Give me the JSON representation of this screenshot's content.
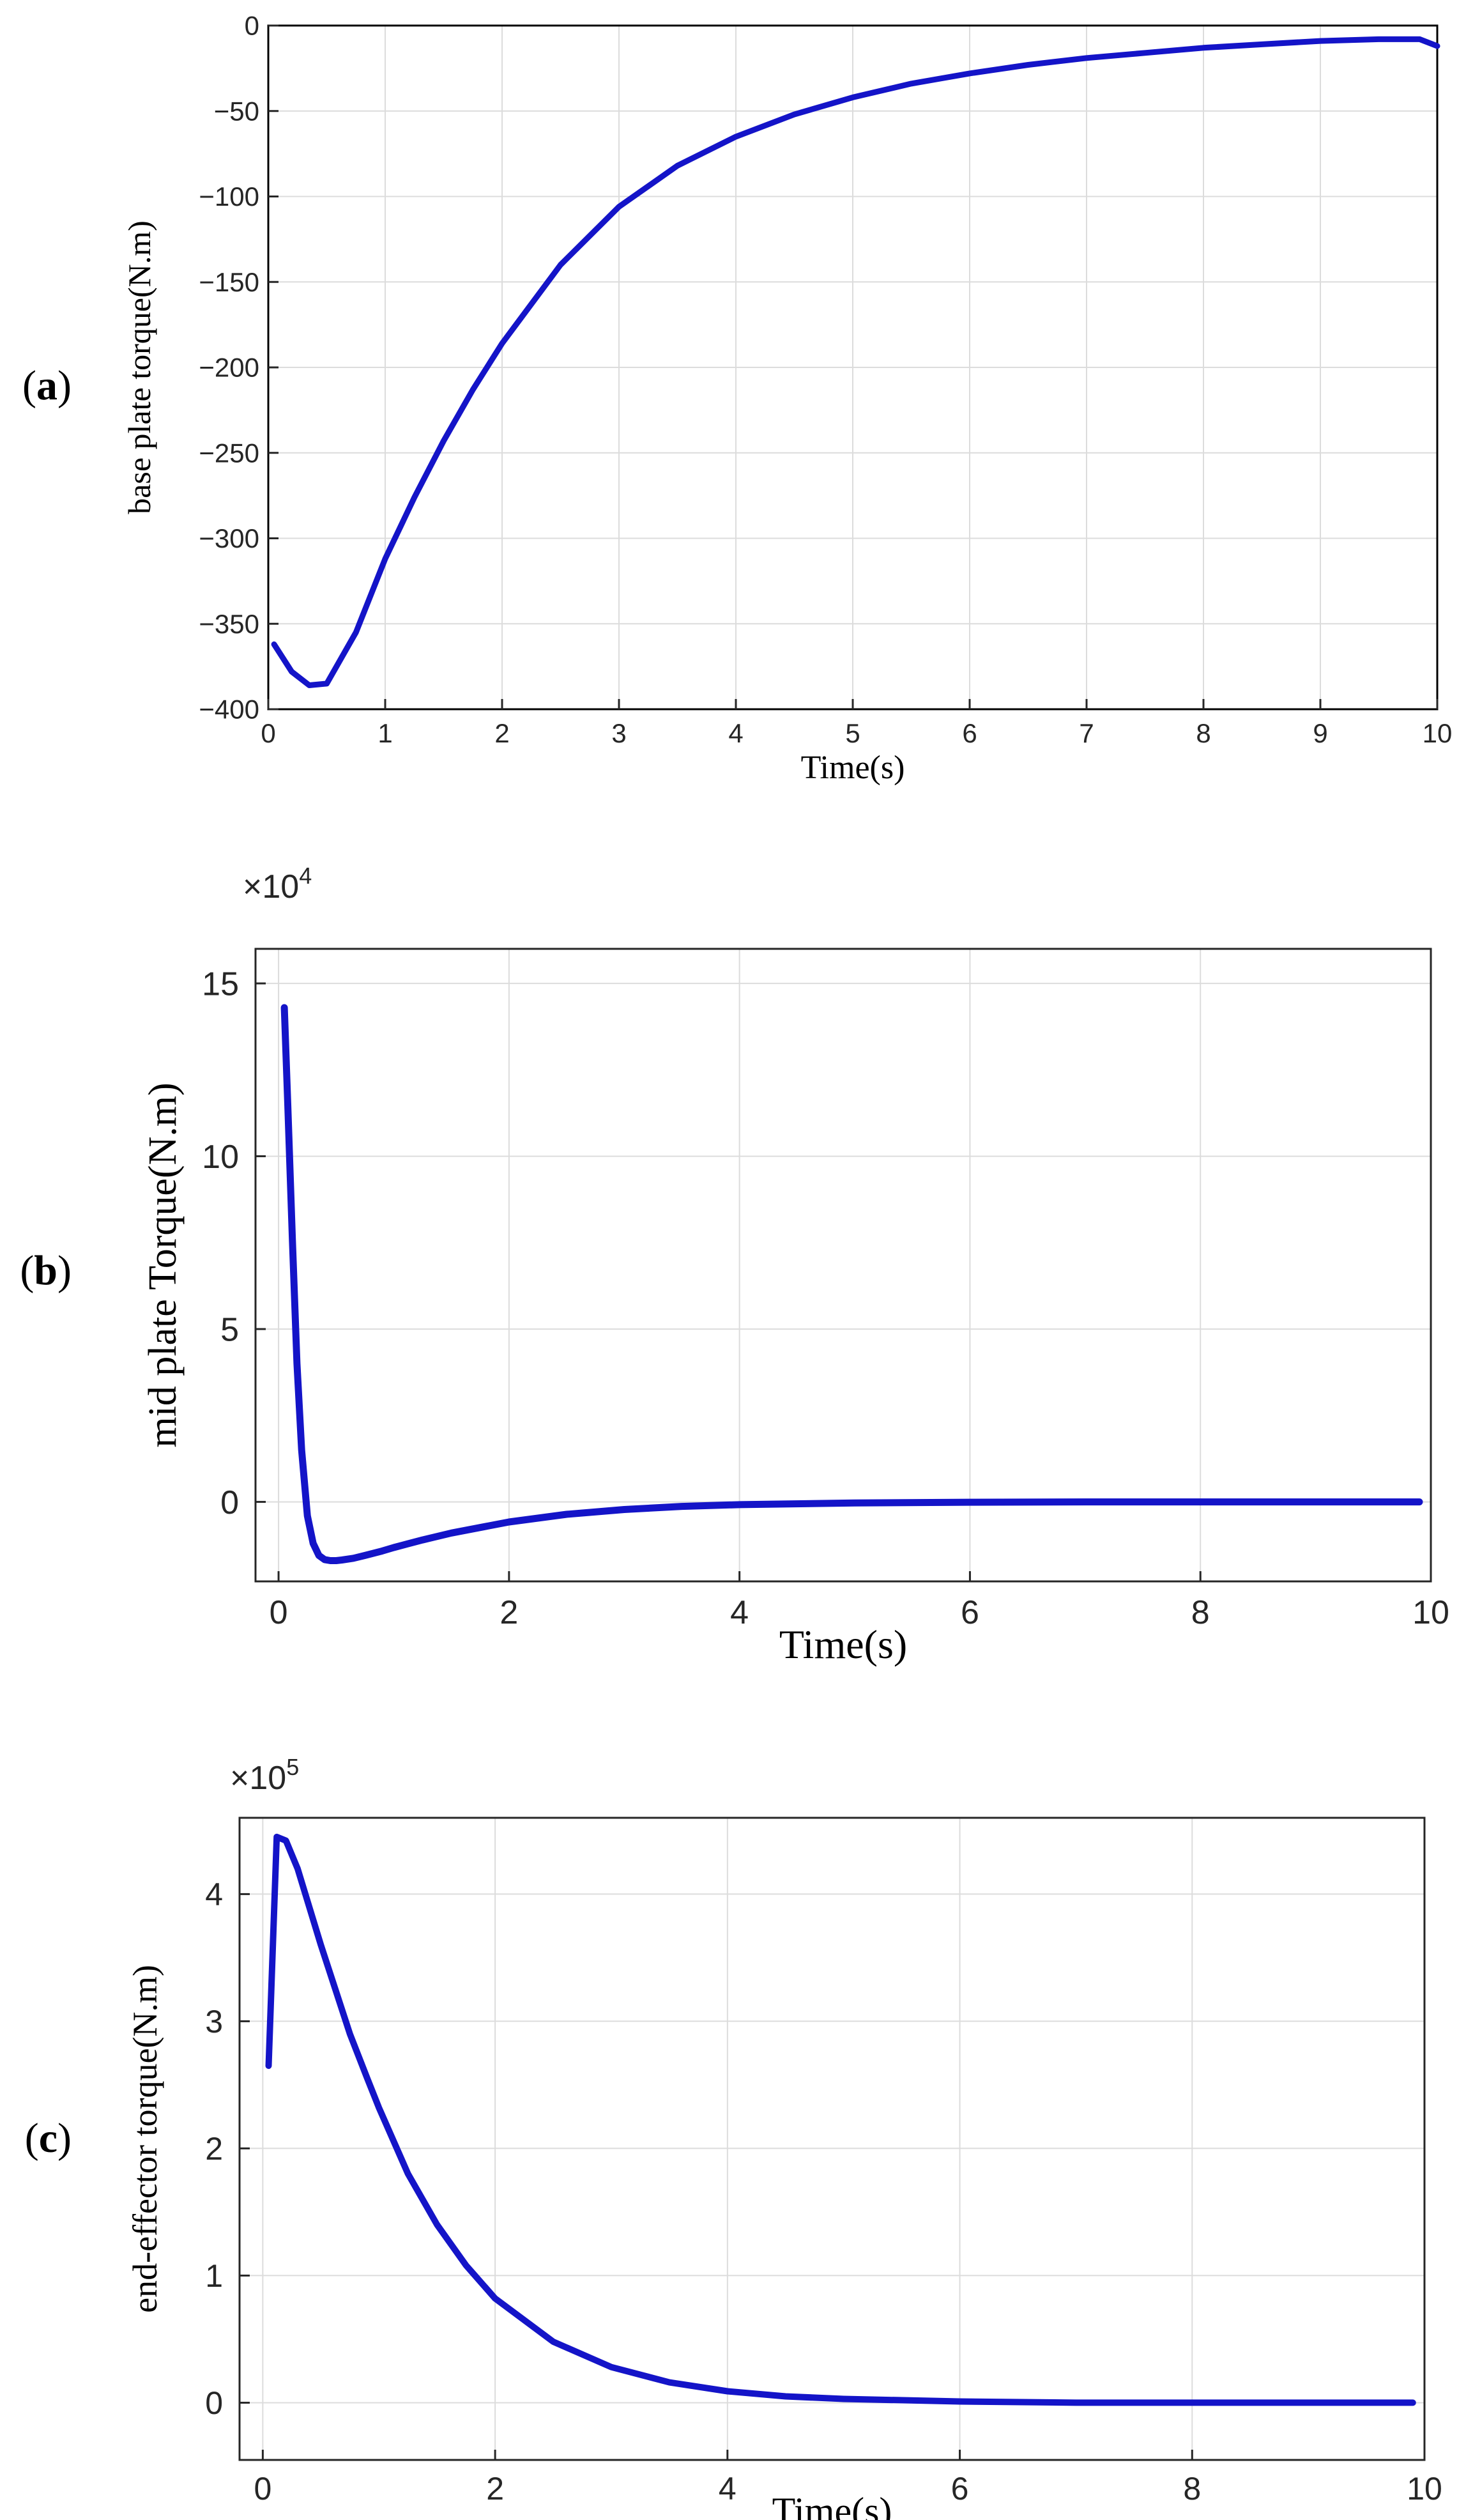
{
  "figure": {
    "panel_label_open": "(",
    "panel_label_close": ")"
  },
  "chart_data": [
    {
      "type": "line",
      "panel": "a",
      "xlabel": "Time(s)",
      "ylabel": "base plate torque(N.m)",
      "xlim": [
        0,
        10
      ],
      "ylim": [
        -400,
        0
      ],
      "xticks": [
        0,
        1,
        2,
        3,
        4,
        5,
        6,
        7,
        8,
        9,
        10
      ],
      "yticks": [
        0,
        -50,
        -100,
        -150,
        -200,
        -250,
        -300,
        -350,
        -400
      ],
      "ytick_labels": [
        "0",
        "−50",
        "−100",
        "−150",
        "−200",
        "−250",
        "−300",
        "−350",
        "−400"
      ],
      "y_multiplier": "",
      "grid": true,
      "line_color": "#1414c8",
      "series": [
        {
          "x": [
            0.05,
            0.2,
            0.35,
            0.5,
            0.75,
            1.0,
            1.25,
            1.5,
            1.75,
            2.0,
            2.5,
            3.0,
            3.5,
            4.0,
            4.5,
            5.0,
            5.5,
            6.0,
            6.5,
            7.0,
            7.5,
            8.0,
            8.5,
            9.0,
            9.5,
            9.85,
            10.0
          ],
          "y": [
            -362,
            -378,
            -386,
            -385,
            -355,
            -312,
            -276,
            -243,
            -213,
            -186,
            -140,
            -106,
            -82,
            -65,
            -52,
            -42,
            -34,
            -28,
            -23,
            -19,
            -16,
            -13,
            -11,
            -9,
            -8,
            -8,
            -12
          ]
        }
      ]
    },
    {
      "type": "line",
      "panel": "b",
      "xlabel": "Time(s)",
      "ylabel": "mid plate Torque(N.m)",
      "xlim": [
        -0.2,
        10
      ],
      "ylim": [
        -2.3,
        16
      ],
      "xticks": [
        0,
        2,
        4,
        6,
        8,
        10
      ],
      "yticks": [
        0,
        5,
        10,
        15
      ],
      "ytick_labels": [
        "0",
        "5",
        "10",
        "15"
      ],
      "y_multiplier": "×10",
      "y_multiplier_exp": "4",
      "grid": true,
      "line_color": "#1414c8",
      "series": [
        {
          "x": [
            0.05,
            0.08,
            0.12,
            0.16,
            0.2,
            0.25,
            0.3,
            0.35,
            0.4,
            0.45,
            0.5,
            0.55,
            0.65,
            0.75,
            0.9,
            1.0,
            1.25,
            1.5,
            2.0,
            2.5,
            3.0,
            3.5,
            4.0,
            5.0,
            6.0,
            7.0,
            8.0,
            9.0,
            9.9
          ],
          "y": [
            14.3,
            11.5,
            7.6,
            4.0,
            1.5,
            -0.4,
            -1.2,
            -1.55,
            -1.67,
            -1.7,
            -1.7,
            -1.68,
            -1.63,
            -1.55,
            -1.42,
            -1.32,
            -1.1,
            -0.9,
            -0.58,
            -0.36,
            -0.22,
            -0.13,
            -0.08,
            -0.03,
            -0.01,
            0,
            0,
            0,
            0
          ]
        }
      ]
    },
    {
      "type": "line",
      "panel": "c",
      "xlabel": "Time(s)",
      "ylabel": "end-effector torque(N.m)",
      "xlim": [
        -0.2,
        10
      ],
      "ylim": [
        -0.45,
        4.6
      ],
      "xticks": [
        0,
        2,
        4,
        6,
        8,
        10
      ],
      "yticks": [
        0,
        1,
        2,
        3,
        4
      ],
      "ytick_labels": [
        "0",
        "1",
        "2",
        "3",
        "4"
      ],
      "y_multiplier": "×10",
      "y_multiplier_exp": "5",
      "grid": true,
      "line_color": "#1414c8",
      "series": [
        {
          "x": [
            0.05,
            0.12,
            0.2,
            0.3,
            0.4,
            0.5,
            0.6,
            0.75,
            0.9,
            1.0,
            1.25,
            1.5,
            1.75,
            2.0,
            2.5,
            3.0,
            3.5,
            4.0,
            4.5,
            5.0,
            6.0,
            7.0,
            8.0,
            9.0,
            9.9
          ],
          "y": [
            2.65,
            4.45,
            4.42,
            4.2,
            3.9,
            3.6,
            3.32,
            2.9,
            2.55,
            2.32,
            1.8,
            1.4,
            1.08,
            0.82,
            0.48,
            0.28,
            0.16,
            0.09,
            0.05,
            0.03,
            0.01,
            0.0,
            0.0,
            0.0,
            0.0
          ]
        }
      ]
    }
  ]
}
